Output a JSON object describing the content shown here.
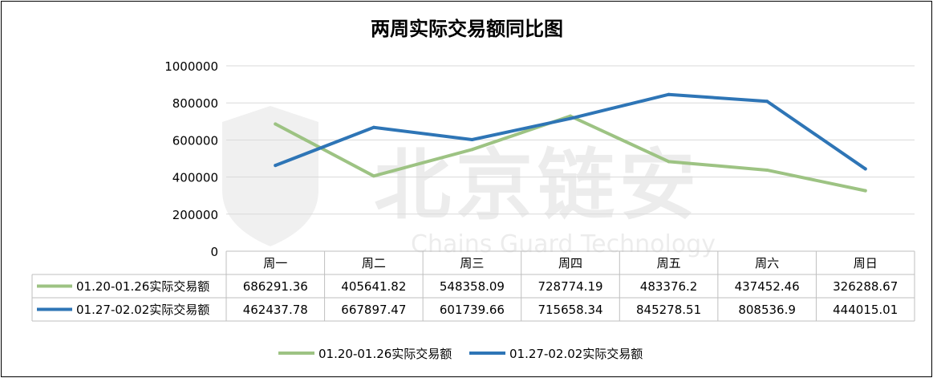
{
  "watermark": {
    "brand_cn": "北京链安",
    "brand_en": "Chains Guard Technology"
  },
  "chart_data": {
    "type": "line",
    "title": "两周实际交易额同比图",
    "xlabel": "",
    "ylabel": "",
    "categories": [
      "周一",
      "周二",
      "周三",
      "周四",
      "周五",
      "周六",
      "周日"
    ],
    "y_ticks": [
      "0",
      "200000",
      "400000",
      "600000",
      "800000",
      "1000000"
    ],
    "ylim": [
      0,
      1000000
    ],
    "grid": true,
    "legend_position": "bottom",
    "series": [
      {
        "name": "01.20-01.26实际交易额",
        "color": "#9dc383",
        "values": [
          686291.36,
          405641.82,
          548358.09,
          728774.19,
          483376.2,
          437452.46,
          326288.67
        ],
        "labels": [
          "686291.36",
          "405641.82",
          "548358.09",
          "728774.19",
          "483376.2",
          "437452.46",
          "326288.67"
        ]
      },
      {
        "name": "01.27-02.02实际交易额",
        "color": "#2e75b6",
        "values": [
          462437.78,
          667897.47,
          601739.66,
          715658.34,
          845278.51,
          808536.9,
          444015.01
        ],
        "labels": [
          "462437.78",
          "667897.47",
          "601739.66",
          "715658.34",
          "845278.51",
          "808536.9",
          "444015.01"
        ]
      }
    ]
  }
}
